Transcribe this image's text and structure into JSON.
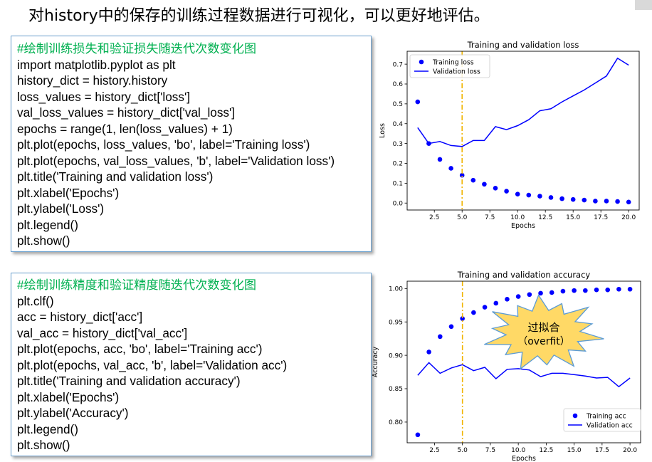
{
  "heading": "对history中的保存的训练过程数据进行可视化，可以更好地评估。",
  "code_loss": [
    "#绘制训练损失和验证损失随迭代次数变化图",
    "import matplotlib.pyplot as plt",
    "history_dict = history.history",
    "loss_values = history_dict['loss']",
    "val_loss_values = history_dict['val_loss']",
    "epochs = range(1, len(loss_values) + 1)",
    "plt.plot(epochs, loss_values, 'bo', label='Training loss')",
    "plt.plot(epochs, val_loss_values, 'b', label='Validation loss')",
    "plt.title('Training and validation loss')",
    "plt.xlabel('Epochs')",
    "plt.ylabel('Loss')",
    "plt.legend()",
    "plt.show()"
  ],
  "code_acc": [
    "#绘制训练精度和验证精度随迭代次数变化图",
    "plt.clf()",
    "acc = history_dict['acc']",
    "val_acc = history_dict['val_acc']",
    "plt.plot(epochs, acc, 'bo', label='Training acc')",
    "plt.plot(epochs, val_acc, 'b', label='Validation acc')",
    "plt.title('Training and validation accuracy')",
    "plt.xlabel('Epochs')",
    "plt.ylabel('Accuracy')",
    "plt.legend()",
    "plt.show()"
  ],
  "chart_data": [
    {
      "type": "line",
      "title": "Training and validation loss",
      "xlabel": "Epochs",
      "ylabel": "Loss",
      "xlim": [
        0.05,
        20.95
      ],
      "ylim": [
        -0.035,
        0.765
      ],
      "xticks": [
        2.5,
        5.0,
        7.5,
        10.0,
        12.5,
        15.0,
        17.5,
        20.0
      ],
      "xtick_labels": [
        "2.5",
        "5.0",
        "7.5",
        "10.0",
        "12.5",
        "15.0",
        "17.5",
        "20.0"
      ],
      "yticks": [
        0.0,
        0.1,
        0.2,
        0.3,
        0.4,
        0.5,
        0.6,
        0.7
      ],
      "ytick_labels": [
        "0.0",
        "0.1",
        "0.2",
        "0.3",
        "0.4",
        "0.5",
        "0.6",
        "0.7"
      ],
      "grid": false,
      "legend_position": "top-left",
      "x": [
        1,
        2,
        3,
        4,
        5,
        6,
        7,
        8,
        9,
        10,
        11,
        12,
        13,
        14,
        15,
        16,
        17,
        18,
        19,
        20
      ],
      "series": [
        {
          "name": "Training loss",
          "style": "dots",
          "color": "#0000ff",
          "values": [
            0.51,
            0.3,
            0.22,
            0.175,
            0.14,
            0.115,
            0.095,
            0.075,
            0.06,
            0.045,
            0.04,
            0.035,
            0.028,
            0.022,
            0.018,
            0.015,
            0.01,
            0.01,
            0.008,
            0.005
          ]
        },
        {
          "name": "Validation loss",
          "style": "line",
          "color": "#0000ff",
          "values": [
            0.38,
            0.3,
            0.31,
            0.29,
            0.285,
            0.315,
            0.315,
            0.385,
            0.37,
            0.39,
            0.42,
            0.465,
            0.475,
            0.51,
            0.54,
            0.57,
            0.605,
            0.64,
            0.73,
            0.695
          ]
        }
      ],
      "vline": {
        "x": 5.0,
        "color": "#f0b400"
      }
    },
    {
      "type": "line",
      "title": "Training and validation accuracy",
      "xlabel": "Epochs",
      "ylabel": "Accuracy",
      "xlim": [
        0.05,
        20.95
      ],
      "ylim": [
        0.769,
        1.011
      ],
      "xticks": [
        2.5,
        5.0,
        7.5,
        10.0,
        12.5,
        15.0,
        17.5,
        20.0
      ],
      "xtick_labels": [
        "2.5",
        "5.0",
        "7.5",
        "10.0",
        "12.5",
        "15.0",
        "17.5",
        "20.0"
      ],
      "yticks": [
        0.8,
        0.85,
        0.9,
        0.95,
        1.0
      ],
      "ytick_labels": [
        "0.80",
        "0.85",
        "0.90",
        "0.95",
        "1.00"
      ],
      "grid": false,
      "legend_position": "bottom-right",
      "x": [
        1,
        2,
        3,
        4,
        5,
        6,
        7,
        8,
        9,
        10,
        11,
        12,
        13,
        14,
        15,
        16,
        17,
        18,
        19,
        20
      ],
      "series": [
        {
          "name": "Training acc",
          "style": "dots",
          "color": "#0000ff",
          "values": [
            0.781,
            0.905,
            0.928,
            0.943,
            0.955,
            0.964,
            0.972,
            0.978,
            0.984,
            0.988,
            0.991,
            0.993,
            0.994,
            0.996,
            0.997,
            0.997,
            0.998,
            0.998,
            0.999,
            0.999
          ]
        },
        {
          "name": "Validation acc",
          "style": "line",
          "color": "#0000ff",
          "values": [
            0.87,
            0.889,
            0.873,
            0.881,
            0.886,
            0.877,
            0.882,
            0.865,
            0.879,
            0.88,
            0.878,
            0.868,
            0.873,
            0.873,
            0.871,
            0.869,
            0.866,
            0.867,
            0.853,
            0.866
          ]
        }
      ],
      "vline": {
        "x": 5.0,
        "color": "#f0b400"
      },
      "callout": {
        "line1": "过拟合",
        "line2": "（overfit）",
        "fill": "#ffd966",
        "stroke": "#5b9bd5"
      }
    }
  ]
}
